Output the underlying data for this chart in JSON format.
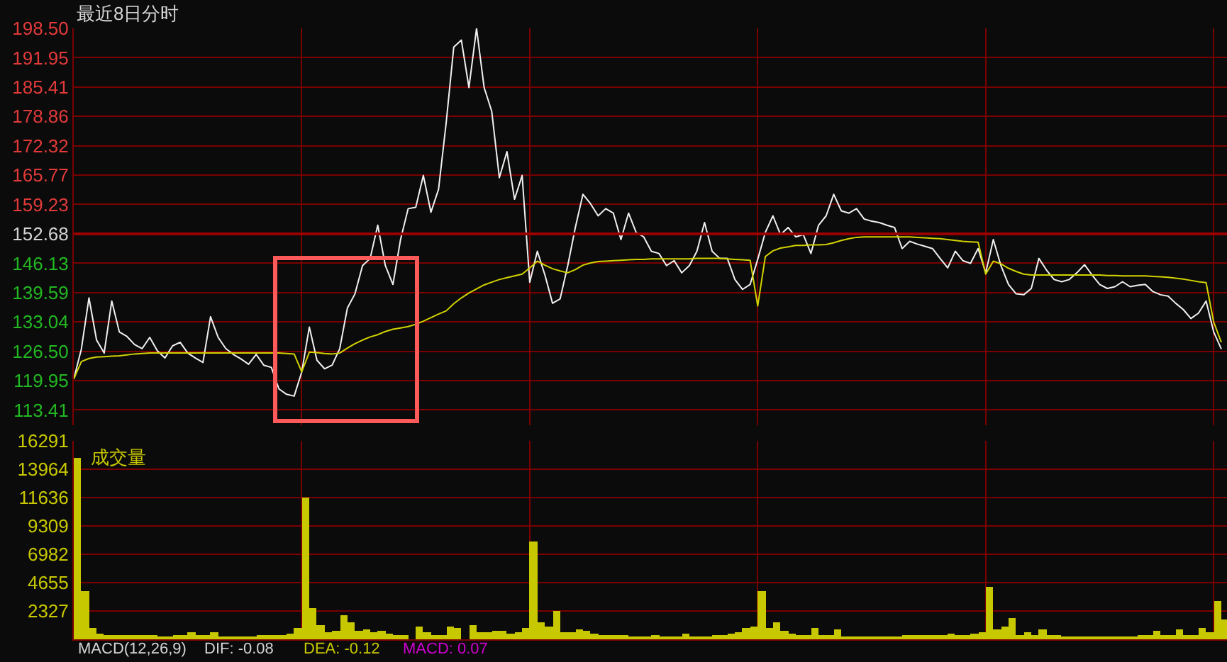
{
  "chart_data": [
    {
      "type": "line",
      "title": "最近8日分时",
      "categories": [
        null,
        null,
        null,
        null,
        null,
        null,
        null,
        null,
        null,
        null,
        null,
        null,
        null,
        null,
        null,
        null,
        null,
        null,
        null,
        null,
        null,
        null,
        null,
        null,
        null,
        null,
        null,
        null,
        null,
        null,
        null,
        null,
        null,
        null,
        null,
        null,
        null,
        null,
        null,
        null,
        null,
        null,
        null,
        null,
        null,
        null,
        null,
        null,
        null,
        null,
        null,
        null,
        null,
        null,
        null,
        null,
        null,
        null,
        null,
        null,
        null,
        null,
        null,
        null,
        null,
        null,
        null,
        null,
        null,
        null,
        null,
        null,
        null,
        null,
        null,
        null,
        null,
        null,
        null,
        null,
        null,
        null,
        null,
        null,
        null,
        null,
        null,
        null,
        null,
        null,
        null,
        null,
        null,
        null,
        null,
        null,
        null,
        null,
        null,
        null,
        null,
        null,
        null,
        null,
        null,
        null,
        null,
        null,
        null,
        null,
        null,
        null,
        null,
        null,
        null,
        null,
        null,
        null,
        null,
        null,
        null,
        null,
        null,
        null,
        null,
        null,
        null,
        null,
        null,
        null,
        null,
        null,
        null,
        null,
        null,
        null,
        null,
        null,
        null,
        null,
        null,
        null,
        null,
        null,
        null,
        null,
        null,
        null,
        null,
        null,
        null,
        null
      ],
      "series": [
        {
          "color": "#f0f0f0",
          "values": [
            120.3,
            127.0,
            138.4,
            129.0,
            126.1,
            137.7,
            130.8,
            129.8,
            128.0,
            127.1,
            129.6,
            126.6,
            125.0,
            127.7,
            128.5,
            126.1,
            125.0,
            124.0,
            134.2,
            129.6,
            127.1,
            125.8,
            124.8,
            123.6,
            125.8,
            123.4,
            122.9,
            118.1,
            116.9,
            116.5,
            121.9,
            131.9,
            124.5,
            122.6,
            123.4,
            127.1,
            136.1,
            139.3,
            145.6,
            147.2,
            154.6,
            145.6,
            141.4,
            151.4,
            158.3,
            158.6,
            165.7,
            157.5,
            162.6,
            177.4,
            194.3,
            195.9,
            185.3,
            198.5,
            185.3,
            180.0,
            165.2,
            171.0,
            160.4,
            165.7,
            141.9,
            148.8,
            143.5,
            137.2,
            138.2,
            145.6,
            154.1,
            161.5,
            159.4,
            156.7,
            158.3,
            157.3,
            151.4,
            157.3,
            153.0,
            152.0,
            148.8,
            148.3,
            145.6,
            146.7,
            144.0,
            145.6,
            148.8,
            155.2,
            148.8,
            147.2,
            147.2,
            142.5,
            140.3,
            141.4,
            147.0,
            153.0,
            156.7,
            152.5,
            154.1,
            152.0,
            152.5,
            148.3,
            154.6,
            156.7,
            161.5,
            157.8,
            157.3,
            158.3,
            156.0,
            155.5,
            155.2,
            154.6,
            154.1,
            149.4,
            151.0,
            150.4,
            149.9,
            149.4,
            147.2,
            145.1,
            148.8,
            146.7,
            146.1,
            149.4,
            144.0,
            151.4,
            145.6,
            141.4,
            139.3,
            139.1,
            140.5,
            147.2,
            144.6,
            142.5,
            142.0,
            142.5,
            144.0,
            145.8,
            143.5,
            141.4,
            140.5,
            140.9,
            142.0,
            140.9,
            141.2,
            141.4,
            139.8,
            139.1,
            138.8,
            137.2,
            135.8,
            133.8,
            135.0,
            137.7,
            130.8,
            127.0
          ]
        },
        {
          "color": "#d2d200",
          "values": [
            120.3,
            124.2,
            124.9,
            125.2,
            125.3,
            125.4,
            125.5,
            125.7,
            125.9,
            126.0,
            126.1,
            126.1,
            126.1,
            126.1,
            126.1,
            126.1,
            126.1,
            126.1,
            126.1,
            126.1,
            126.1,
            126.1,
            126.1,
            126.1,
            126.1,
            126.1,
            126.1,
            126.1,
            126.0,
            125.9,
            121.9,
            126.3,
            126.2,
            126.0,
            125.9,
            126.1,
            127.2,
            128.2,
            129.0,
            129.7,
            130.2,
            130.9,
            131.4,
            131.7,
            132.0,
            132.5,
            133.2,
            134.0,
            134.8,
            135.5,
            137.1,
            138.4,
            139.5,
            140.4,
            141.3,
            141.9,
            142.5,
            142.9,
            143.3,
            143.7,
            145.1,
            146.6,
            145.7,
            144.9,
            144.4,
            144.0,
            144.7,
            145.7,
            146.2,
            146.5,
            146.6,
            146.7,
            146.8,
            146.9,
            147.0,
            147.0,
            147.1,
            147.1,
            147.1,
            147.1,
            147.1,
            147.1,
            147.2,
            147.2,
            147.2,
            147.2,
            147.1,
            147.0,
            146.9,
            146.8,
            136.6,
            147.6,
            148.9,
            149.5,
            149.8,
            150.1,
            150.1,
            150.2,
            150.2,
            150.3,
            150.7,
            151.2,
            151.6,
            151.9,
            152.0,
            152.0,
            152.0,
            152.0,
            152.0,
            152.0,
            152.0,
            151.9,
            151.8,
            151.7,
            151.6,
            151.4,
            151.2,
            151.0,
            150.9,
            150.8,
            143.7,
            146.6,
            146.0,
            145.0,
            144.3,
            143.7,
            143.5,
            143.5,
            143.5,
            143.5,
            143.5,
            143.5,
            143.5,
            143.5,
            143.5,
            143.5,
            143.4,
            143.4,
            143.3,
            143.3,
            143.3,
            143.3,
            143.2,
            143.1,
            143.0,
            142.8,
            142.6,
            142.3,
            142.0,
            141.8,
            133.0,
            128.5
          ]
        }
      ],
      "ylim": [
        110,
        198.5
      ],
      "yticks": [
        {
          "value": 198.5,
          "label": "198.50"
        },
        191.95,
        185.41,
        178.86,
        172.32,
        165.77,
        159.23,
        152.68,
        146.13,
        139.59,
        133.04,
        {
          "value": 126.5,
          "label": "126.50"
        },
        119.95,
        113.41
      ],
      "ref_lines": [
        {
          "axis": "y",
          "value": 152.68,
          "color": "#9a0000"
        }
      ],
      "grid": true,
      "tick_labels": "y"
    },
    {
      "type": "bar",
      "title": "成交量",
      "color": "#c8c800",
      "categories": [
        null,
        null,
        null,
        null,
        null,
        null,
        null,
        null,
        null,
        null,
        null,
        null,
        null,
        null,
        null,
        null,
        null,
        null,
        null,
        null,
        null,
        null,
        null,
        null,
        null,
        null,
        null,
        null,
        null,
        null,
        null,
        null,
        null,
        null,
        null,
        null,
        null,
        null,
        null,
        null,
        null,
        null,
        null,
        null,
        null,
        null,
        null,
        null,
        null,
        null,
        null,
        null,
        null,
        null,
        null,
        null,
        null,
        null,
        null,
        null,
        null,
        null,
        null,
        null,
        null,
        null,
        null,
        null,
        null,
        null,
        null,
        null,
        null,
        null,
        null,
        null,
        null,
        null,
        null,
        null,
        null,
        null,
        null,
        null,
        null,
        null,
        null,
        null,
        null,
        null,
        null,
        null,
        null,
        null,
        null,
        null,
        null,
        null,
        null,
        null,
        null,
        null,
        null,
        null,
        null,
        null,
        null,
        null,
        null,
        null,
        null,
        null,
        null,
        null,
        null,
        null,
        null,
        null,
        null,
        null,
        null,
        null,
        null,
        null,
        null,
        null,
        null,
        null,
        null,
        null,
        null,
        null,
        null,
        null,
        null,
        null,
        null,
        null,
        null,
        null,
        null,
        null,
        null,
        null,
        null,
        null,
        null,
        null,
        null,
        null,
        null,
        null
      ],
      "values": [
        14900,
        3900,
        900,
        500,
        400,
        300,
        300,
        300,
        300,
        300,
        300,
        200,
        200,
        300,
        300,
        600,
        300,
        300,
        600,
        200,
        200,
        200,
        200,
        200,
        300,
        300,
        300,
        300,
        500,
        900,
        11600,
        2600,
        1200,
        600,
        700,
        2000,
        1400,
        700,
        800,
        600,
        700,
        500,
        400,
        400,
        null,
        1100,
        600,
        400,
        400,
        1100,
        900,
        null,
        1200,
        600,
        600,
        700,
        700,
        500,
        600,
        900,
        8000,
        1400,
        1100,
        2300,
        600,
        600,
        800,
        700,
        500,
        300,
        300,
        300,
        300,
        200,
        200,
        200,
        300,
        200,
        200,
        200,
        500,
        200,
        200,
        200,
        300,
        300,
        500,
        600,
        900,
        1100,
        4000,
        900,
        1400,
        700,
        500,
        300,
        300,
        900,
        300,
        300,
        800,
        200,
        200,
        200,
        200,
        200,
        200,
        200,
        200,
        300,
        300,
        300,
        300,
        300,
        400,
        500,
        300,
        300,
        500,
        600,
        4300,
        800,
        1100,
        1700,
        300,
        600,
        300,
        800,
        300,
        300,
        200,
        200,
        200,
        200,
        200,
        200,
        200,
        200,
        200,
        200,
        300,
        300,
        700,
        300,
        300,
        800,
        300,
        300,
        900,
        600,
        3200,
        1600
      ],
      "ylim": [
        0,
        16291
      ],
      "yticks": [
        2327,
        4655,
        6982,
        9309,
        11636,
        13964,
        16291
      ],
      "grid": true,
      "tick_labels": "y"
    },
    {
      "type": "other",
      "annotations": [
        "MACD(12,26,9)",
        "DIF: -0.08",
        "DEA: -0.12",
        "MACD: 0.07"
      ],
      "colors": [
        "#d4d4d4",
        "#d4d4d4",
        "#c8c800",
        "#d000d0"
      ]
    }
  ]
}
